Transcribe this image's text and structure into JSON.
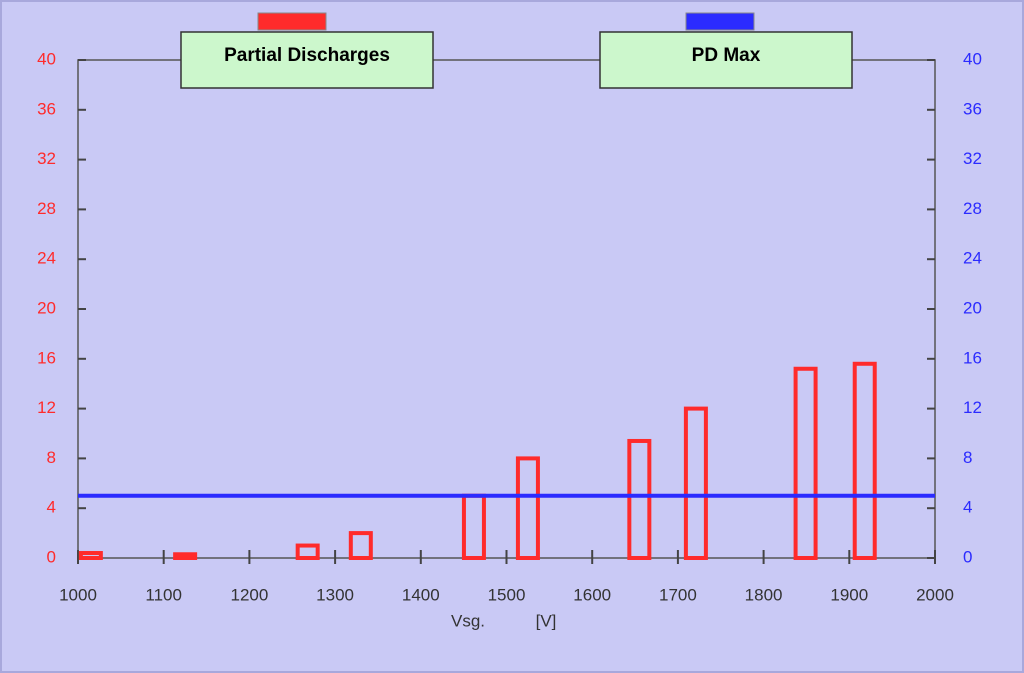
{
  "chart_data": {
    "type": "bar",
    "x": [
      1015,
      1125,
      1268,
      1330,
      1462,
      1525,
      1655,
      1721,
      1849,
      1918
    ],
    "series": [
      {
        "name": "Partial Discharges",
        "color": "#ff2b2b",
        "values": [
          0.4,
          0.3,
          1,
          2,
          5,
          8,
          9.4,
          12,
          15.2,
          15.6
        ]
      },
      {
        "name": "PD Max",
        "color": "#2b2bff",
        "type": "line",
        "axis": "y2",
        "x": [
          1000,
          2000
        ],
        "values": [
          5,
          5
        ]
      }
    ],
    "xlabel": "Vsg.",
    "xunit": "[V]",
    "xlim": [
      1000,
      2000
    ],
    "xticks": [
      1000,
      1100,
      1200,
      1300,
      1400,
      1500,
      1600,
      1700,
      1800,
      1900,
      2000
    ],
    "ylim": [
      0,
      40
    ],
    "yticks": [
      0,
      4,
      8,
      12,
      16,
      20,
      24,
      28,
      32,
      36,
      40
    ],
    "y2lim": [
      0,
      40
    ],
    "y2ticks": [
      0,
      4,
      8,
      12,
      16,
      20,
      24,
      28,
      32,
      36,
      40
    ],
    "ycolor": "#ff2b2b",
    "y2color": "#2b2bff"
  }
}
